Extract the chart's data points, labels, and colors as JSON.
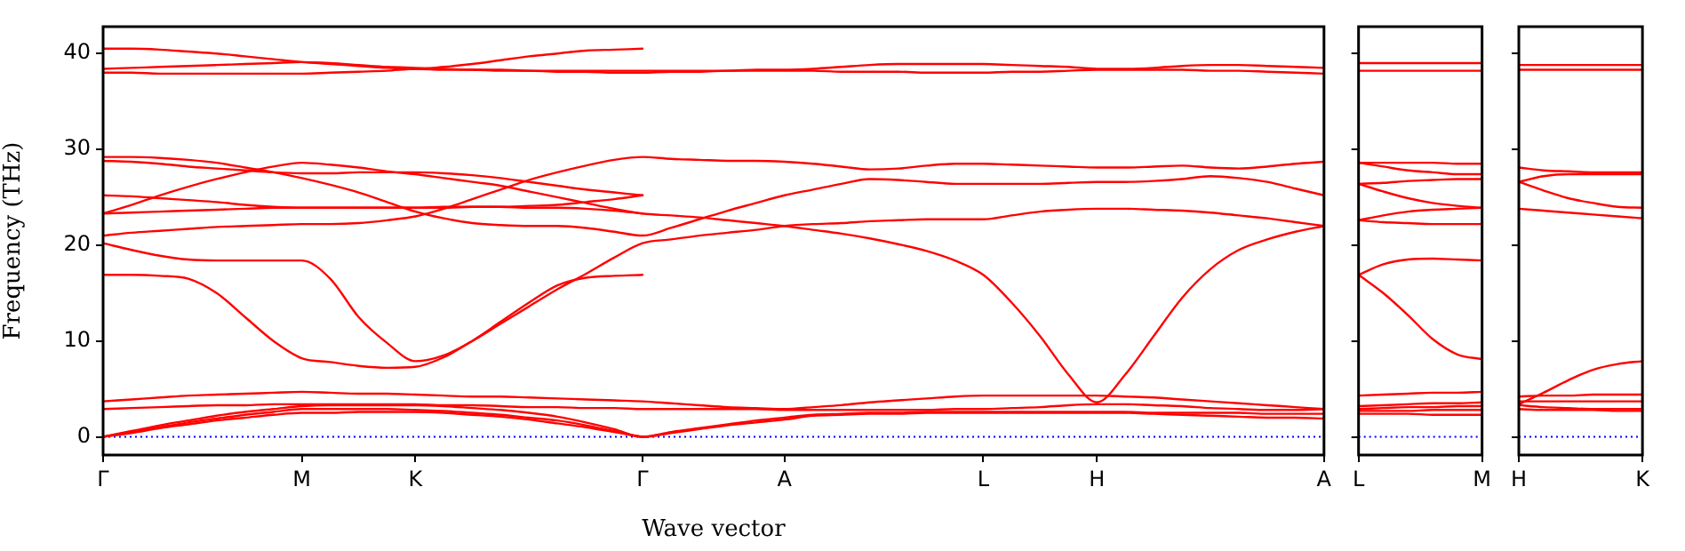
{
  "chart_data": [
    {
      "type": "line",
      "xlabel": "Wave vector",
      "ylabel": "Frequency (THz)",
      "ylim": [
        -1.9,
        42.8
      ],
      "categories": [
        "Γ",
        null,
        null,
        null,
        null,
        null,
        null,
        "M",
        null,
        null,
        null,
        "K",
        null,
        null,
        null,
        null,
        null,
        null,
        null,
        "Γ",
        null,
        null,
        null,
        null,
        "A",
        null,
        null,
        null,
        null,
        null,
        null,
        "L",
        null,
        null,
        null,
        "H",
        null,
        null,
        null,
        null,
        null,
        null,
        null,
        "A"
      ],
      "yticks": [
        0,
        10,
        20,
        30,
        40
      ],
      "grid": false,
      "legend": false,
      "marker": "none",
      "line_style": "solid",
      "ref_lines": [
        {
          "axis": "y",
          "value": 0,
          "color": "#0000ff",
          "line_style": "dotted"
        }
      ],
      "series": [
        {
          "color": "#ff0000",
          "values": [
            40.5,
            40.5,
            40.4,
            40.2,
            40.0,
            39.7,
            39.4,
            39.1,
            38.9,
            38.7,
            38.5,
            38.4,
            38.6,
            38.9,
            39.3,
            39.7,
            40.0,
            40.3,
            40.4,
            40.5,
            null,
            null,
            null,
            null,
            null,
            null,
            null,
            null,
            null,
            null,
            null,
            null,
            null,
            null,
            null,
            null,
            null,
            null,
            null,
            null,
            null,
            null,
            null,
            null
          ]
        },
        {
          "color": "#ff0000",
          "values": [
            38.4,
            38.5,
            38.6,
            38.7,
            38.8,
            38.9,
            39.0,
            39.1,
            39.0,
            38.8,
            38.6,
            38.5,
            38.4,
            38.3,
            38.3,
            38.2,
            38.2,
            38.2,
            38.2,
            38.2,
            38.2,
            38.2,
            38.2,
            38.3,
            38.3,
            38.4,
            38.6,
            38.8,
            38.9,
            38.9,
            38.9,
            38.9,
            38.8,
            38.7,
            38.6,
            38.4,
            38.4,
            38.5,
            38.7,
            38.8,
            38.8,
            38.7,
            38.6,
            38.5
          ]
        },
        {
          "color": "#ff0000",
          "values": [
            38.0,
            38.0,
            37.9,
            37.9,
            37.9,
            37.9,
            37.9,
            37.9,
            38.0,
            38.1,
            38.2,
            38.4,
            38.3,
            38.3,
            38.2,
            38.2,
            38.1,
            38.1,
            38.0,
            38.0,
            38.1,
            38.1,
            38.2,
            38.2,
            38.2,
            38.2,
            38.1,
            38.1,
            38.1,
            38.0,
            38.0,
            38.0,
            38.1,
            38.1,
            38.2,
            38.3,
            38.3,
            38.3,
            38.3,
            38.2,
            38.2,
            38.1,
            38.0,
            37.9
          ]
        },
        {
          "color": "#ff0000",
          "values": [
            21.0,
            21.3,
            21.5,
            21.7,
            21.9,
            22.0,
            22.1,
            22.2,
            22.2,
            22.3,
            22.6,
            23.0,
            23.8,
            24.8,
            25.8,
            26.8,
            27.6,
            28.3,
            28.9,
            29.2,
            29.0,
            28.9,
            28.8,
            28.8,
            28.7,
            28.5,
            28.2,
            27.9,
            28.0,
            28.3,
            28.5,
            28.5,
            28.4,
            28.3,
            28.2,
            28.1,
            28.1,
            28.2,
            28.3,
            28.1,
            28.0,
            28.2,
            28.5,
            28.7
          ]
        },
        {
          "color": "#ff0000",
          "values": [
            29.2,
            29.2,
            29.1,
            28.9,
            28.6,
            28.1,
            27.6,
            27.0,
            26.3,
            25.5,
            24.5,
            23.5,
            22.8,
            22.3,
            22.1,
            22.0,
            22.0,
            21.8,
            21.4,
            21.0,
            21.8,
            22.7,
            23.6,
            24.4,
            25.2,
            25.8,
            26.4,
            26.9,
            26.8,
            26.6,
            26.4,
            26.4,
            26.4,
            26.4,
            26.5,
            26.6,
            26.6,
            26.7,
            26.9,
            27.2,
            27.0,
            26.6,
            25.9,
            25.2
          ]
        },
        {
          "color": "#ff0000",
          "values": [
            23.3,
            24.2,
            25.2,
            26.1,
            26.9,
            27.6,
            28.2,
            28.6,
            28.4,
            28.1,
            27.7,
            27.4,
            27.0,
            26.6,
            26.2,
            25.6,
            25.0,
            24.4,
            23.8,
            23.3,
            23.1,
            22.9,
            22.6,
            22.3,
            22.0,
            21.6,
            21.2,
            20.7,
            20.1,
            19.4,
            18.4,
            16.9,
            14.0,
            10.5,
            6.5,
            3.6,
            6.5,
            10.5,
            14.5,
            17.5,
            19.5,
            20.6,
            21.4,
            22.0
          ]
        },
        {
          "color": "#ff0000",
          "values": [
            20.2,
            19.5,
            18.9,
            18.5,
            18.4,
            18.4,
            18.4,
            18.4,
            16.5,
            12.5,
            9.8,
            7.9,
            8.5,
            10.0,
            11.8,
            13.6,
            15.4,
            17.0,
            18.7,
            20.2,
            20.6,
            21.0,
            21.3,
            21.6,
            22.0,
            22.2,
            22.3,
            22.5,
            22.6,
            22.7,
            22.7,
            22.7,
            23.1,
            23.5,
            23.7,
            23.8,
            23.8,
            23.7,
            23.6,
            23.4,
            23.1,
            22.8,
            22.4,
            22.0
          ]
        },
        {
          "color": "#ff0000",
          "values": [
            16.9,
            16.9,
            16.8,
            16.5,
            15.0,
            12.5,
            10.0,
            8.2,
            7.8,
            7.4,
            7.2,
            7.3,
            8.3,
            10.0,
            12.0,
            14.0,
            15.8,
            16.6,
            16.8,
            16.9,
            null,
            null,
            null,
            null,
            null,
            null,
            null,
            null,
            null,
            null,
            null,
            null,
            null,
            null,
            null,
            null,
            null,
            null,
            null,
            null,
            null,
            null,
            null,
            null
          ]
        },
        {
          "color": "#ff0000",
          "values": [
            28.8,
            28.7,
            28.5,
            28.2,
            28.0,
            27.8,
            27.6,
            27.5,
            27.5,
            27.6,
            27.6,
            27.6,
            27.5,
            27.3,
            27.0,
            26.6,
            26.2,
            25.8,
            25.5,
            25.2,
            null,
            null,
            null,
            null,
            null,
            null,
            null,
            null,
            null,
            null,
            null,
            null,
            null,
            null,
            null,
            null,
            null,
            null,
            null,
            null,
            null,
            null,
            null,
            null
          ]
        },
        {
          "color": "#ff0000",
          "values": [
            25.2,
            25.1,
            24.9,
            24.7,
            24.5,
            24.2,
            24.0,
            23.9,
            23.9,
            23.9,
            23.9,
            23.9,
            23.9,
            24.0,
            24.0,
            24.1,
            24.2,
            24.5,
            24.8,
            25.2,
            null,
            null,
            null,
            null,
            null,
            null,
            null,
            null,
            null,
            null,
            null,
            null,
            null,
            null,
            null,
            null,
            null,
            null,
            null,
            null,
            null,
            null,
            null,
            null
          ]
        },
        {
          "color": "#ff0000",
          "values": [
            23.3,
            23.4,
            23.5,
            23.6,
            23.7,
            23.8,
            23.9,
            23.9,
            23.9,
            23.9,
            23.9,
            23.9,
            24.0,
            24.0,
            24.0,
            23.9,
            23.9,
            23.8,
            23.6,
            23.3,
            null,
            null,
            null,
            null,
            null,
            null,
            null,
            null,
            null,
            null,
            null,
            null,
            null,
            null,
            null,
            null,
            null,
            null,
            null,
            null,
            null,
            null,
            null,
            null
          ]
        },
        {
          "color": "#ff0000",
          "values": [
            3.7,
            3.9,
            4.1,
            4.3,
            4.4,
            4.5,
            4.6,
            4.7,
            4.6,
            4.5,
            4.5,
            4.4,
            4.3,
            4.2,
            4.2,
            4.1,
            4.0,
            3.9,
            3.8,
            3.7,
            3.5,
            3.3,
            3.1,
            3.0,
            2.9,
            3.1,
            3.3,
            3.6,
            3.8,
            4.0,
            4.2,
            4.3,
            4.3,
            4.3,
            4.3,
            4.3,
            4.2,
            4.1,
            3.9,
            3.7,
            3.5,
            3.3,
            3.1,
            2.9
          ]
        },
        {
          "color": "#ff0000",
          "values": [
            2.9,
            3.0,
            3.1,
            3.2,
            3.3,
            3.3,
            3.4,
            3.4,
            3.4,
            3.4,
            3.4,
            3.4,
            3.3,
            3.3,
            3.2,
            3.1,
            3.1,
            3.0,
            3.0,
            2.9,
            2.9,
            2.9,
            2.9,
            2.9,
            2.8,
            2.8,
            2.8,
            2.8,
            2.8,
            2.8,
            2.9,
            2.9,
            3.0,
            3.1,
            3.3,
            3.4,
            3.4,
            3.3,
            3.2,
            3.0,
            2.9,
            2.8,
            2.8,
            2.9
          ]
        },
        {
          "color": "#ff0000",
          "values": [
            0,
            0.6,
            1.2,
            1.7,
            2.2,
            2.6,
            2.9,
            3.2,
            3.3,
            3.3,
            3.3,
            3.3,
            3.2,
            3.0,
            2.8,
            2.5,
            2.1,
            1.5,
            0.8,
            0,
            0.5,
            0.9,
            1.3,
            1.7,
            2.0,
            2.3,
            2.4,
            2.5,
            2.5,
            2.6,
            2.6,
            2.6,
            2.6,
            2.6,
            2.6,
            2.6,
            2.6,
            2.5,
            2.5,
            2.5,
            2.5,
            2.4,
            2.4,
            2.4
          ]
        },
        {
          "color": "#ff0000",
          "values": [
            0,
            0.5,
            1.0,
            1.5,
            1.9,
            2.3,
            2.6,
            2.9,
            2.9,
            2.9,
            2.9,
            2.8,
            2.7,
            2.5,
            2.3,
            2.0,
            1.7,
            1.2,
            0.6,
            0,
            0.4,
            0.8,
            1.2,
            1.5,
            1.8,
            2.2,
            2.3,
            2.4,
            2.4,
            2.5,
            2.5,
            2.5,
            2.5,
            2.5,
            2.5,
            2.5,
            2.5,
            2.4,
            2.3,
            2.2,
            2.1,
            2.0,
            2.0,
            1.9
          ]
        },
        {
          "color": "#ff0000",
          "values": [
            0,
            0.4,
            0.9,
            1.3,
            1.7,
            2.0,
            2.3,
            2.5,
            2.5,
            2.6,
            2.6,
            2.6,
            2.5,
            2.3,
            2.1,
            1.8,
            1.4,
            1.0,
            0.5,
            0,
            null,
            null,
            null,
            null,
            null,
            null,
            null,
            null,
            null,
            null,
            null,
            null,
            null,
            null,
            null,
            null,
            null,
            null,
            null,
            null,
            null,
            null,
            null,
            null
          ]
        }
      ]
    },
    {
      "type": "line",
      "ylim": [
        -1.9,
        42.8
      ],
      "categories": [
        "L",
        null,
        null,
        null,
        null,
        "M"
      ],
      "yticks": [
        0,
        10,
        20,
        30,
        40
      ],
      "tick_labels": "x",
      "grid": false,
      "legend": false,
      "marker": "none",
      "line_style": "solid",
      "ref_lines": [
        {
          "axis": "y",
          "value": 0,
          "color": "#0000ff",
          "line_style": "dotted"
        }
      ],
      "series": [
        {
          "color": "#ff0000",
          "values": [
            39.0,
            39.0,
            39.0,
            39.0,
            39.0,
            39.0
          ]
        },
        {
          "color": "#ff0000",
          "values": [
            38.2,
            38.2,
            38.2,
            38.2,
            38.2,
            38.2
          ]
        },
        {
          "color": "#ff0000",
          "values": [
            28.6,
            28.6,
            28.6,
            28.6,
            28.5,
            28.5
          ]
        },
        {
          "color": "#ff0000",
          "values": [
            28.6,
            28.2,
            27.8,
            27.6,
            27.4,
            27.4
          ]
        },
        {
          "color": "#ff0000",
          "values": [
            26.4,
            26.5,
            26.7,
            26.8,
            26.9,
            26.9
          ]
        },
        {
          "color": "#ff0000",
          "values": [
            26.4,
            25.6,
            24.9,
            24.4,
            24.1,
            23.9
          ]
        },
        {
          "color": "#ff0000",
          "values": [
            22.6,
            23.1,
            23.5,
            23.7,
            23.8,
            23.9
          ]
        },
        {
          "color": "#ff0000",
          "values": [
            22.6,
            22.4,
            22.3,
            22.2,
            22.2,
            22.2
          ]
        },
        {
          "color": "#ff0000",
          "values": [
            16.9,
            18.0,
            18.5,
            18.6,
            18.5,
            18.4
          ]
        },
        {
          "color": "#ff0000",
          "values": [
            16.9,
            15.0,
            12.7,
            10.2,
            8.6,
            8.1
          ]
        },
        {
          "color": "#ff0000",
          "values": [
            4.3,
            4.4,
            4.5,
            4.6,
            4.6,
            4.7
          ]
        },
        {
          "color": "#ff0000",
          "values": [
            3.2,
            3.3,
            3.4,
            3.5,
            3.5,
            3.6
          ]
        },
        {
          "color": "#ff0000",
          "values": [
            2.9,
            3.0,
            3.1,
            3.1,
            3.2,
            3.2
          ]
        },
        {
          "color": "#ff0000",
          "values": [
            2.7,
            2.7,
            2.7,
            2.8,
            2.8,
            2.8
          ]
        },
        {
          "color": "#ff0000",
          "values": [
            2.4,
            2.4,
            2.4,
            2.3,
            2.3,
            2.3
          ]
        }
      ]
    },
    {
      "type": "line",
      "ylim": [
        -1.9,
        42.8
      ],
      "categories": [
        "H",
        null,
        null,
        null,
        null,
        "K"
      ],
      "yticks": [
        0,
        10,
        20,
        30,
        40
      ],
      "tick_labels": "x",
      "grid": false,
      "legend": false,
      "marker": "none",
      "line_style": "solid",
      "ref_lines": [
        {
          "axis": "y",
          "value": 0,
          "color": "#0000ff",
          "line_style": "dotted"
        }
      ],
      "series": [
        {
          "color": "#ff0000",
          "values": [
            38.8,
            38.8,
            38.8,
            38.8,
            38.8,
            38.8
          ]
        },
        {
          "color": "#ff0000",
          "values": [
            38.3,
            38.3,
            38.3,
            38.3,
            38.3,
            38.3
          ]
        },
        {
          "color": "#ff0000",
          "values": [
            28.1,
            27.8,
            27.7,
            27.6,
            27.6,
            27.6
          ]
        },
        {
          "color": "#ff0000",
          "values": [
            26.6,
            27.2,
            27.4,
            27.4,
            27.4,
            27.4
          ]
        },
        {
          "color": "#ff0000",
          "values": [
            26.6,
            25.7,
            24.9,
            24.4,
            24.0,
            23.9
          ]
        },
        {
          "color": "#ff0000",
          "values": [
            23.8,
            23.6,
            23.4,
            23.2,
            23.0,
            22.8
          ]
        },
        {
          "color": "#ff0000",
          "values": [
            3.4,
            4.6,
            5.9,
            7.0,
            7.6,
            7.9
          ]
        },
        {
          "color": "#ff0000",
          "values": [
            4.2,
            4.3,
            4.3,
            4.4,
            4.4,
            4.4
          ]
        },
        {
          "color": "#ff0000",
          "values": [
            3.7,
            3.7,
            3.7,
            3.7,
            3.7,
            3.7
          ]
        },
        {
          "color": "#ff0000",
          "values": [
            3.3,
            3.1,
            3.0,
            2.9,
            2.9,
            2.9
          ]
        },
        {
          "color": "#ff0000",
          "values": [
            2.9,
            2.8,
            2.8,
            2.8,
            2.7,
            2.7
          ]
        }
      ]
    }
  ]
}
